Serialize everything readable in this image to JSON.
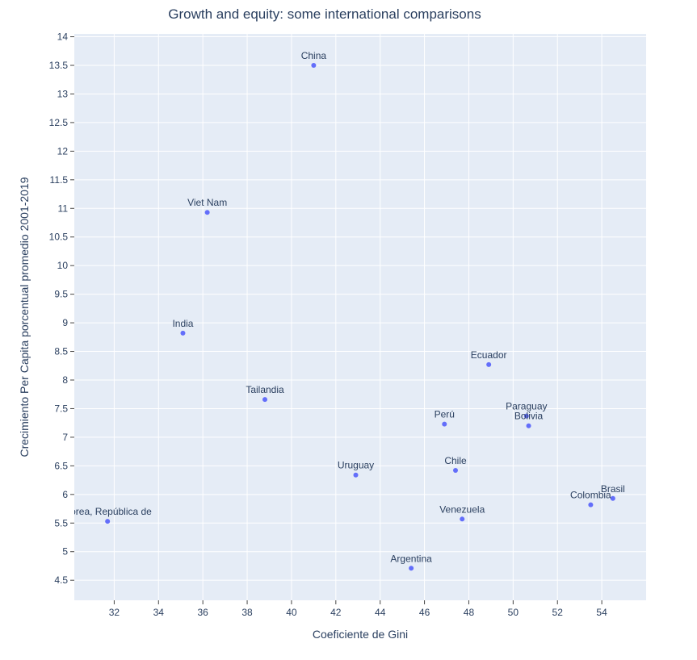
{
  "chart_data": {
    "type": "scatter",
    "title": "Growth and equity: some international comparisons",
    "xlabel": "Coeficiente de Gini",
    "ylabel": "Crecimiento Per Capita porcentual promedio 2001-2019",
    "xlim": [
      30.2,
      56.0
    ],
    "ylim": [
      4.15,
      14.05
    ],
    "x_ticks": [
      32,
      34,
      36,
      38,
      40,
      42,
      44,
      46,
      48,
      50,
      52,
      54
    ],
    "y_ticks": [
      4.5,
      5,
      5.5,
      6,
      6.5,
      7,
      7.5,
      8,
      8.5,
      9,
      9.5,
      10,
      10.5,
      11,
      11.5,
      12,
      12.5,
      13,
      13.5,
      14
    ],
    "grid": true,
    "colors": {
      "plot_bg": "#e5ecf6",
      "marker": "#636efa",
      "text": "#2a3f5f",
      "grid": "#ffffff"
    },
    "points": [
      {
        "label": "China",
        "x": 41.0,
        "y": 13.5
      },
      {
        "label": "Viet Nam",
        "x": 36.2,
        "y": 10.93
      },
      {
        "label": "India",
        "x": 35.1,
        "y": 8.82
      },
      {
        "label": "Tailandia",
        "x": 38.8,
        "y": 7.66
      },
      {
        "label": "Ecuador",
        "x": 48.9,
        "y": 8.27
      },
      {
        "label": "Paraguay",
        "x": 50.6,
        "y": 7.37
      },
      {
        "label": "Bolivia",
        "x": 50.7,
        "y": 7.2
      },
      {
        "label": "Perú",
        "x": 46.9,
        "y": 7.23
      },
      {
        "label": "Uruguay",
        "x": 42.9,
        "y": 6.34
      },
      {
        "label": "Chile",
        "x": 47.4,
        "y": 6.42
      },
      {
        "label": "Venezuela",
        "x": 47.7,
        "y": 5.57
      },
      {
        "label": "Argentina",
        "x": 45.4,
        "y": 4.71
      },
      {
        "label": "Colombia",
        "x": 53.5,
        "y": 5.82
      },
      {
        "label": "Brasil",
        "x": 54.5,
        "y": 5.93
      },
      {
        "label": "Corea, República de",
        "x": 31.7,
        "y": 5.53
      }
    ]
  }
}
